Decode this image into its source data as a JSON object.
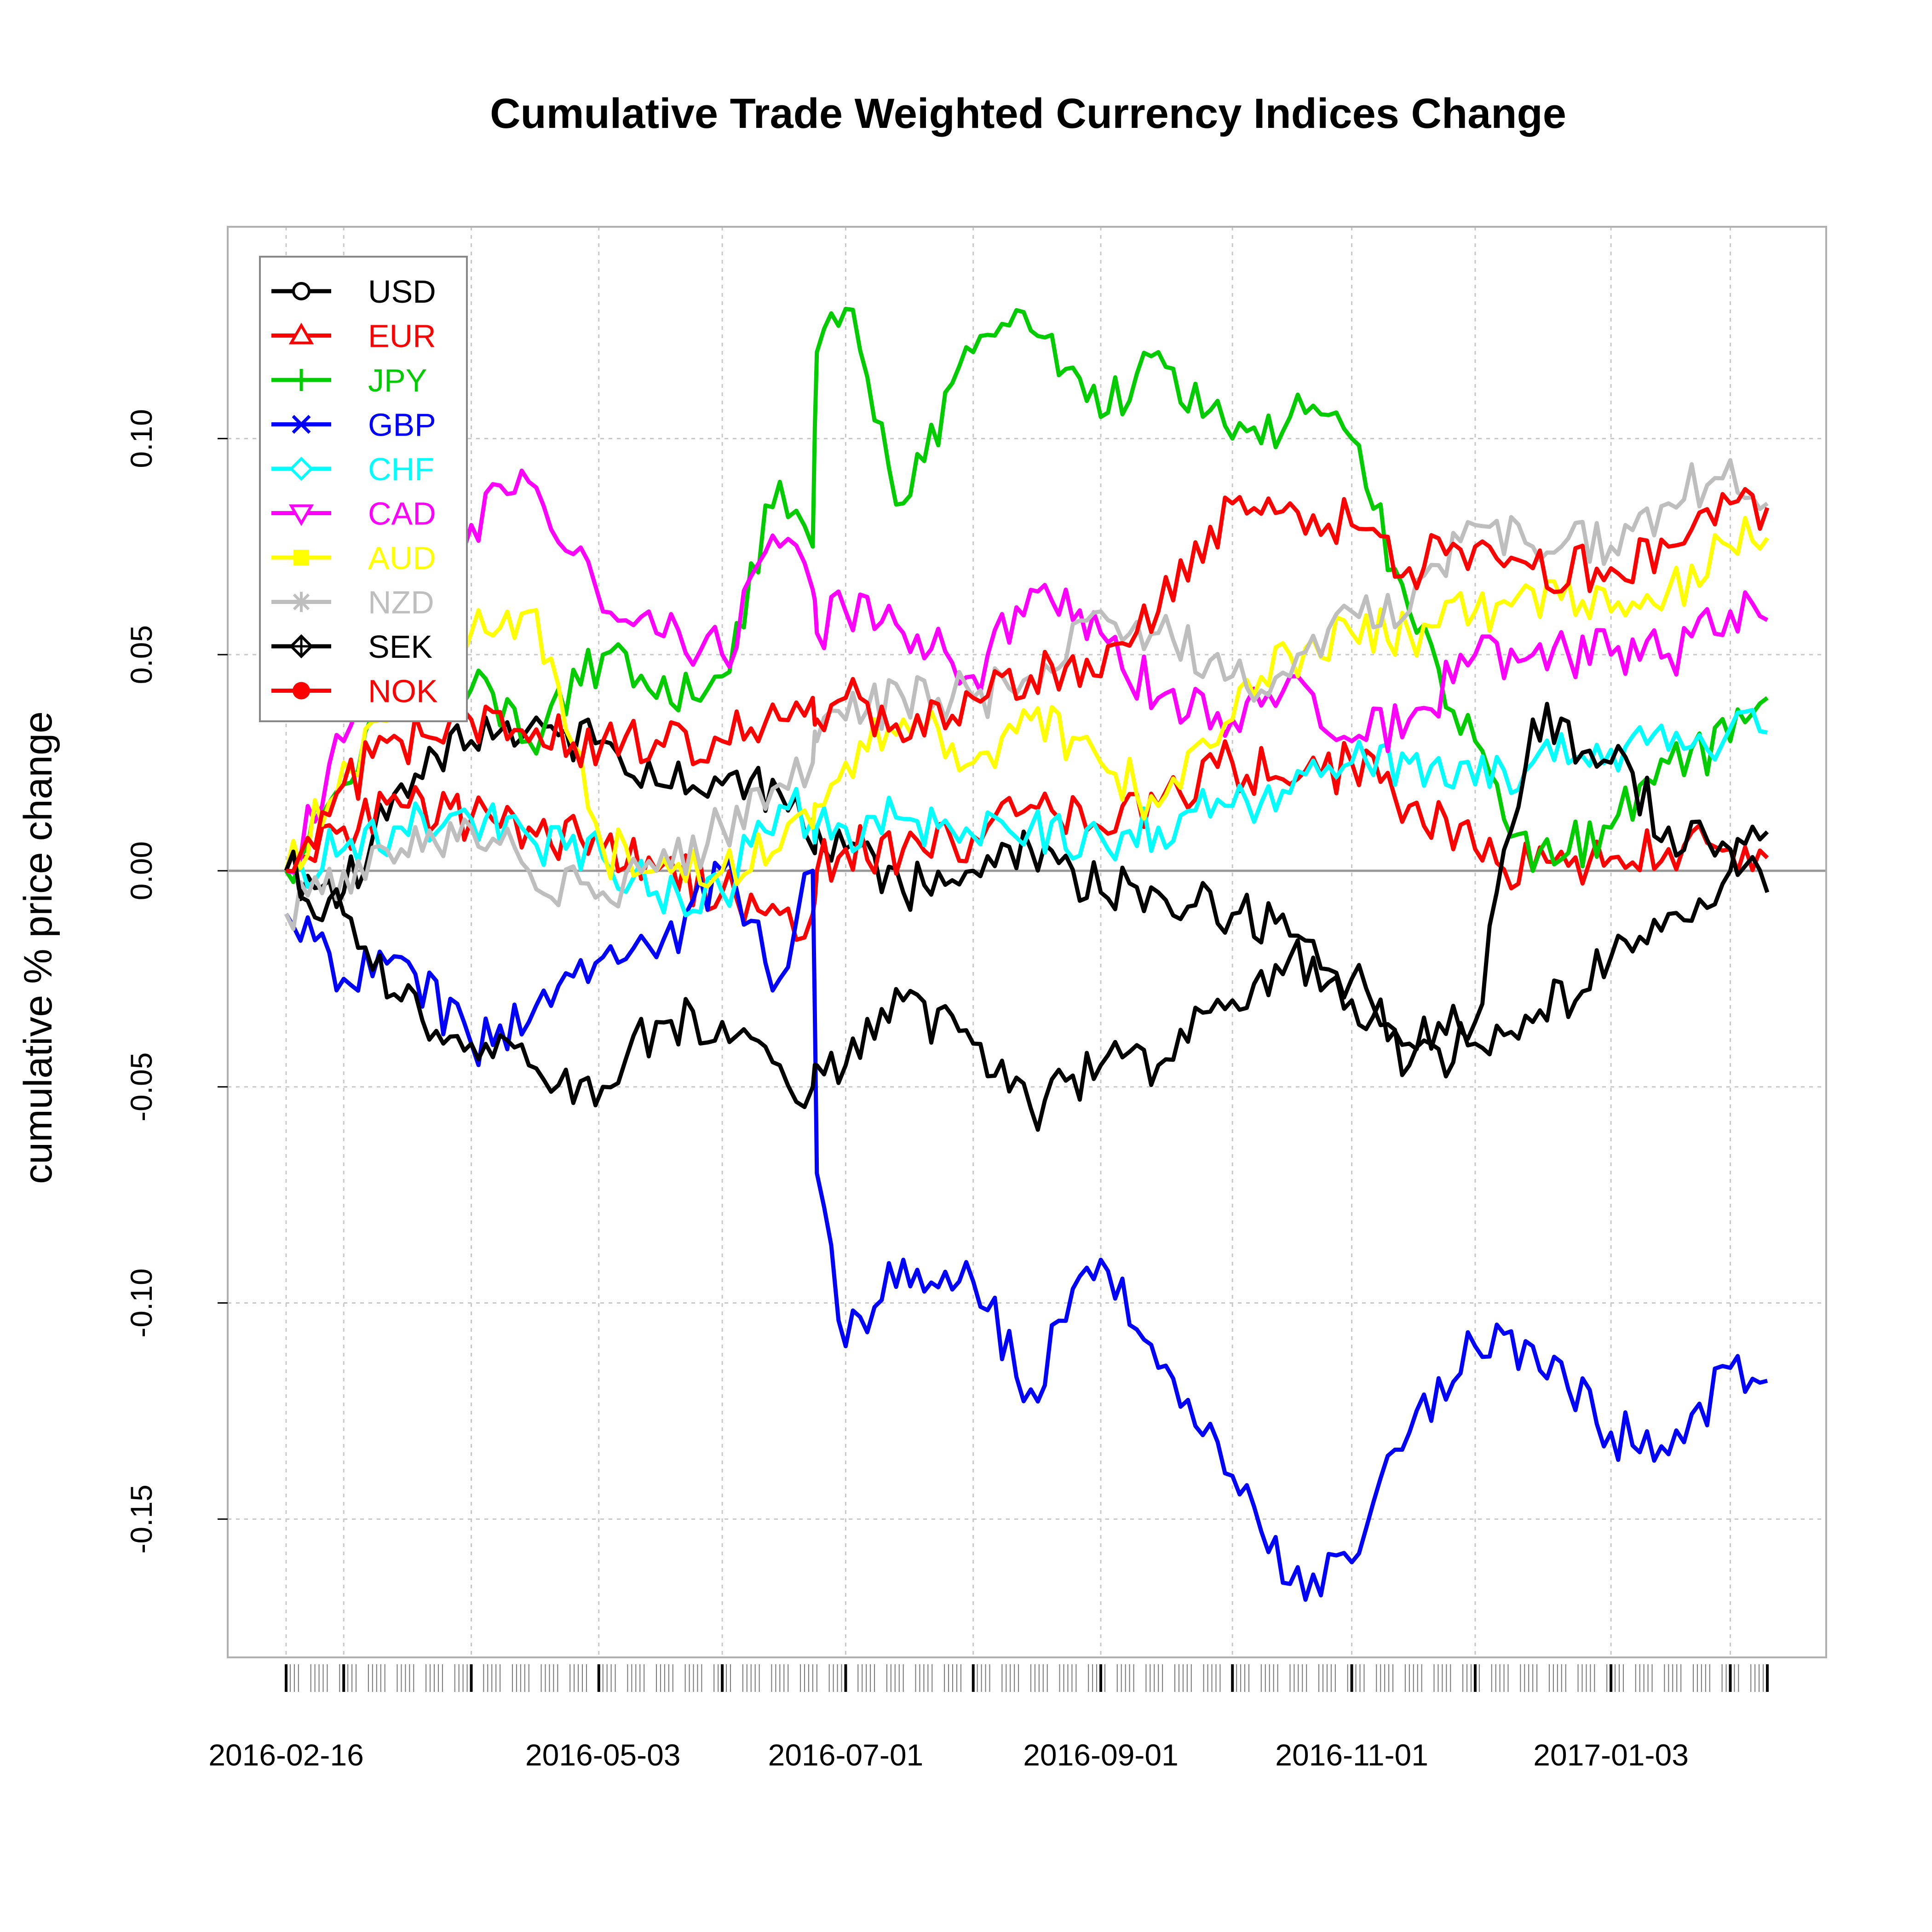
{
  "chart_data": {
    "type": "line",
    "title": "Cumulative Trade Weighted Currency Indices Change",
    "xlabel": "",
    "ylabel": "cumulative % price change",
    "x_tick_labels": [
      "2016-02-16",
      "2016-05-03",
      "2016-07-01",
      "2016-09-01",
      "2016-11-01",
      "2017-01-03"
    ],
    "x_ticks": [
      "2016-02-16",
      "2016-05-03",
      "2016-07-01",
      "2016-09-01",
      "2016-11-01",
      "2017-01-03"
    ],
    "x": [
      "2016-02-16",
      "2016-03-01",
      "2016-03-15",
      "2016-04-01",
      "2016-04-15",
      "2016-05-03",
      "2016-05-16",
      "2016-06-01",
      "2016-06-15",
      "2016-06-23",
      "2016-06-24",
      "2016-07-01",
      "2016-07-15",
      "2016-08-01",
      "2016-08-15",
      "2016-09-01",
      "2016-09-15",
      "2016-10-03",
      "2016-10-17",
      "2016-11-01",
      "2016-11-15",
      "2016-12-01",
      "2016-12-15",
      "2017-01-03",
      "2017-01-17",
      "2017-02-01",
      "2017-02-10"
    ],
    "y_ticks": [
      -0.15,
      -0.1,
      -0.05,
      0.0,
      0.05,
      0.1
    ],
    "y_tick_labels": [
      "-0.15",
      "-0.10",
      "-0.05",
      "0.00",
      "0.05",
      "0.10"
    ],
    "ylim": [
      -0.182,
      0.149
    ],
    "zero_line": 0.0,
    "grid": true,
    "legend_position": "top-left",
    "series": [
      {
        "name": "USD",
        "color": "#000000",
        "marker": "circle",
        "values": [
          0.0,
          -0.005,
          0.02,
          0.03,
          0.033,
          0.03,
          0.02,
          0.02,
          0.018,
          0.005,
          0.01,
          0.005,
          -0.005,
          0.0,
          0.005,
          -0.005,
          -0.005,
          -0.01,
          -0.015,
          -0.025,
          -0.045,
          -0.04,
          -0.035,
          -0.02,
          -0.01,
          0.0,
          0.009
        ]
      },
      {
        "name": "EUR",
        "color": "#ff0000",
        "marker": "triangle",
        "values": [
          0.0,
          0.01,
          0.015,
          0.012,
          0.01,
          0.005,
          0.0,
          -0.005,
          -0.01,
          -0.01,
          0.0,
          0.005,
          0.005,
          0.008,
          0.015,
          0.01,
          0.015,
          0.025,
          0.02,
          0.025,
          0.015,
          0.005,
          0.0,
          0.003,
          0.005,
          0.005,
          0.003
        ]
      },
      {
        "name": "JPY",
        "color": "#00cc00",
        "marker": "plus",
        "values": [
          0.0,
          0.02,
          0.04,
          0.042,
          0.03,
          0.05,
          0.04,
          0.045,
          0.09,
          0.075,
          0.12,
          0.13,
          0.085,
          0.12,
          0.125,
          0.105,
          0.12,
          0.1,
          0.105,
          0.1,
          0.06,
          0.03,
          0.0,
          0.01,
          0.025,
          0.03,
          0.04
        ]
      },
      {
        "name": "GBP",
        "color": "#0000ff",
        "marker": "x",
        "values": [
          -0.01,
          -0.025,
          -0.02,
          -0.04,
          -0.035,
          -0.02,
          -0.02,
          0.0,
          -0.025,
          0.0,
          -0.07,
          -0.11,
          -0.09,
          -0.095,
          -0.12,
          -0.09,
          -0.115,
          -0.14,
          -0.165,
          -0.16,
          -0.13,
          -0.11,
          -0.11,
          -0.13,
          -0.135,
          -0.115,
          -0.118
        ]
      },
      {
        "name": "CHF",
        "color": "#00ffff",
        "marker": "diamond",
        "values": [
          0.0,
          0.005,
          0.01,
          0.012,
          0.008,
          0.003,
          -0.005,
          -0.005,
          0.015,
          0.012,
          0.01,
          0.01,
          0.012,
          0.008,
          0.01,
          0.008,
          0.01,
          0.015,
          0.018,
          0.025,
          0.025,
          0.02,
          0.025,
          0.028,
          0.028,
          0.033,
          0.032
        ]
      },
      {
        "name": "CAD",
        "color": "#ff00ff",
        "marker": "triangle-down",
        "values": [
          0.0,
          0.03,
          0.06,
          0.08,
          0.09,
          0.06,
          0.055,
          0.05,
          0.075,
          0.065,
          0.055,
          0.06,
          0.055,
          0.045,
          0.065,
          0.055,
          0.04,
          0.035,
          0.045,
          0.03,
          0.035,
          0.05,
          0.05,
          0.05,
          0.05,
          0.06,
          0.058
        ]
      },
      {
        "name": "AUD",
        "color": "#ffff00",
        "marker": "square",
        "values": [
          0.0,
          0.025,
          0.035,
          0.055,
          0.06,
          0.005,
          0.0,
          0.0,
          0.005,
          0.01,
          0.015,
          0.025,
          0.035,
          0.025,
          0.035,
          0.025,
          0.015,
          0.035,
          0.05,
          0.055,
          0.055,
          0.06,
          0.065,
          0.06,
          0.065,
          0.075,
          0.077
        ]
      },
      {
        "name": "NZD",
        "color": "#bebebe",
        "marker": "asterisk",
        "values": [
          -0.01,
          0.0,
          0.005,
          0.01,
          0.0,
          -0.005,
          0.0,
          0.01,
          0.02,
          0.025,
          0.03,
          0.035,
          0.04,
          0.04,
          0.045,
          0.06,
          0.055,
          0.045,
          0.045,
          0.06,
          0.06,
          0.08,
          0.075,
          0.075,
          0.085,
          0.095,
          0.085
        ]
      },
      {
        "name": "SEK",
        "color": "#000000",
        "marker": "diamond-plus",
        "values": [
          0.0,
          -0.01,
          -0.03,
          -0.04,
          -0.045,
          -0.05,
          -0.035,
          -0.035,
          -0.045,
          -0.05,
          -0.045,
          -0.045,
          -0.03,
          -0.04,
          -0.055,
          -0.045,
          -0.045,
          -0.03,
          -0.02,
          -0.03,
          -0.04,
          -0.035,
          0.035,
          0.025,
          0.01,
          0.005,
          -0.005
        ]
      },
      {
        "name": "NOK",
        "color": "#ff0000",
        "marker": "circle-filled",
        "values": [
          0.0,
          0.02,
          0.03,
          0.035,
          0.03,
          0.03,
          0.03,
          0.03,
          0.035,
          0.04,
          0.035,
          0.04,
          0.03,
          0.04,
          0.045,
          0.045,
          0.06,
          0.085,
          0.085,
          0.08,
          0.07,
          0.075,
          0.07,
          0.07,
          0.075,
          0.085,
          0.084
        ]
      }
    ]
  }
}
